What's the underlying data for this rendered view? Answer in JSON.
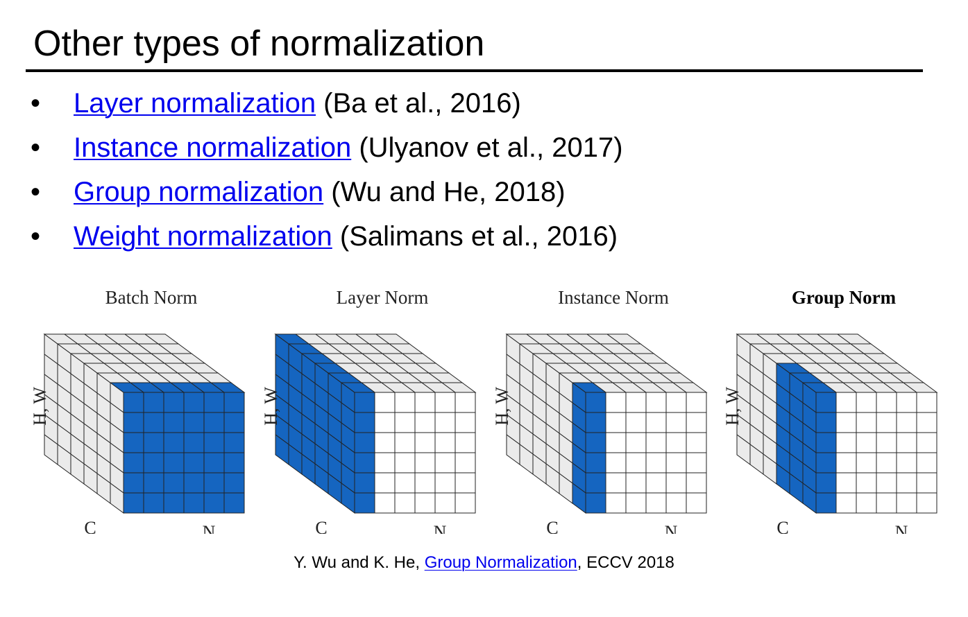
{
  "title": "Other types of normalization",
  "bullets": [
    {
      "link": "Layer normalization",
      "rest": " (Ba et al., 2016)"
    },
    {
      "link": "Instance normalization",
      "rest": " (Ulyanov et al., 2017)"
    },
    {
      "link": "Group normalization",
      "rest": " (Wu and He, 2018)"
    },
    {
      "link": "Weight normalization",
      "rest": " (Salimans et al., 2016)"
    }
  ],
  "bullet_symbol": "•",
  "colors": {
    "link": "#0000ee",
    "highlight": "#1565c0",
    "cube_fill": "#ebebeb",
    "grid_line": "#222222"
  },
  "figure": {
    "panels": [
      {
        "title": "Batch Norm",
        "bold": false,
        "highlight": "batch"
      },
      {
        "title": "Layer Norm",
        "bold": false,
        "highlight": "layer"
      },
      {
        "title": "Instance Norm",
        "bold": false,
        "highlight": "instance"
      },
      {
        "title": "Group Norm",
        "bold": true,
        "highlight": "group"
      }
    ],
    "axis_labels": {
      "hw": "H, W",
      "c": "C",
      "n": "N"
    }
  },
  "citation": {
    "before": "Y. Wu and K. He, ",
    "link": "Group Normalization",
    "after": ", ECCV 2018"
  }
}
